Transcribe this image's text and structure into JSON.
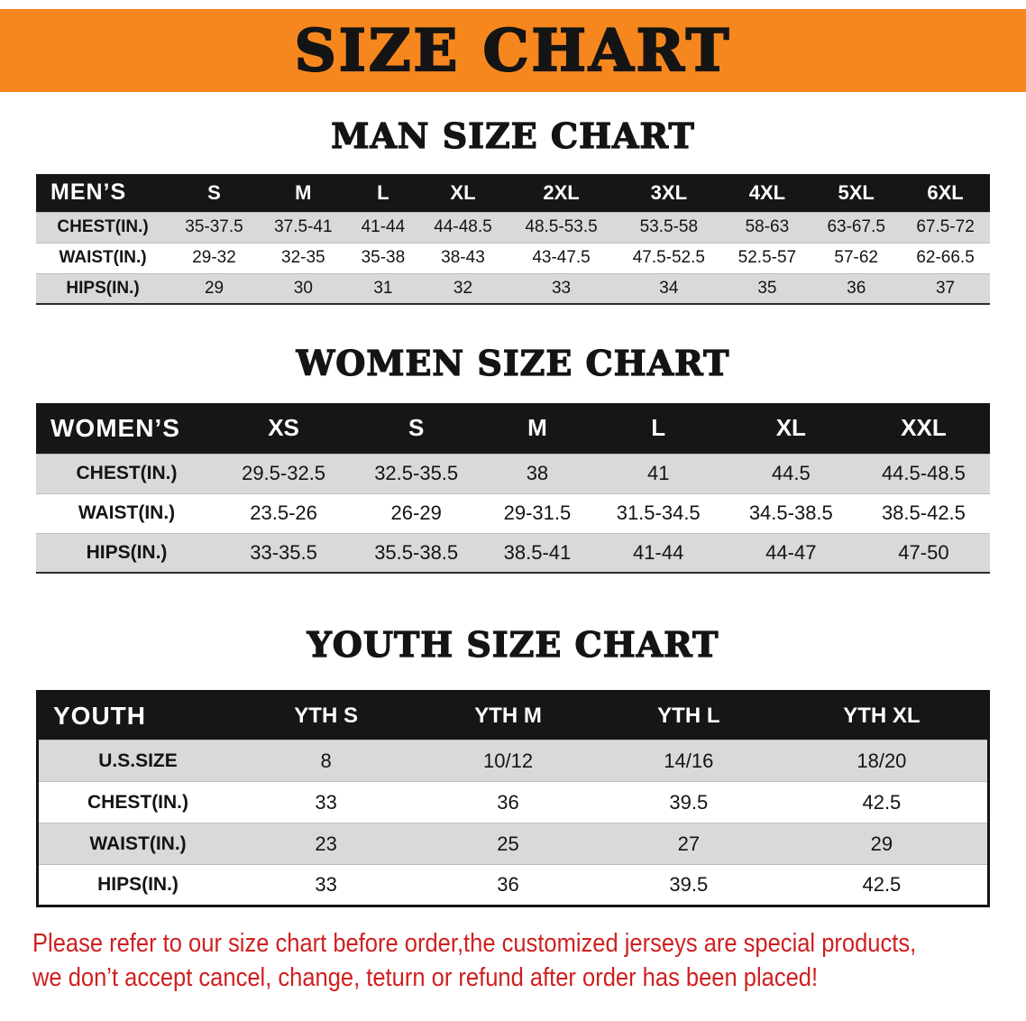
{
  "banner": {
    "title": "SIZE CHART",
    "background_color": "#f6871f",
    "text_color": "#141414"
  },
  "chart_data": [
    {
      "type": "table",
      "title": "MAN SIZE CHART",
      "columns": [
        "MEN’S",
        "S",
        "M",
        "L",
        "XL",
        "2XL",
        "3XL",
        "4XL",
        "5XL",
        "6XL"
      ],
      "rows": [
        [
          "CHEST(IN.)",
          "35-37.5",
          "37.5-41",
          "41-44",
          "44-48.5",
          "48.5-53.5",
          "53.5-58",
          "58-63",
          "63-67.5",
          "67.5-72"
        ],
        [
          "WAIST(IN.)",
          "29-32",
          "32-35",
          "35-38",
          "38-43",
          "43-47.5",
          "47.5-52.5",
          "52.5-57",
          "57-62",
          "62-66.5"
        ],
        [
          "HIPS(IN.)",
          "29",
          "30",
          "31",
          "32",
          "33",
          "34",
          "35",
          "36",
          "37"
        ]
      ]
    },
    {
      "type": "table",
      "title": "WOMEN SIZE CHART",
      "columns": [
        "WOMEN’S",
        "XS",
        "S",
        "M",
        "L",
        "XL",
        "XXL"
      ],
      "rows": [
        [
          "CHEST(IN.)",
          "29.5-32.5",
          "32.5-35.5",
          "38",
          "41",
          "44.5",
          "44.5-48.5"
        ],
        [
          "WAIST(IN.)",
          "23.5-26",
          "26-29",
          "29-31.5",
          "31.5-34.5",
          "34.5-38.5",
          "38.5-42.5"
        ],
        [
          "HIPS(IN.)",
          "33-35.5",
          "35.5-38.5",
          "38.5-41",
          "41-44",
          "44-47",
          "47-50"
        ]
      ]
    },
    {
      "type": "table",
      "title": "YOUTH SIZE CHART",
      "columns": [
        "YOUTH",
        "YTH S",
        "YTH M",
        "YTH L",
        "YTH XL"
      ],
      "rows": [
        [
          "U.S.SIZE",
          "8",
          "10/12",
          "14/16",
          "18/20"
        ],
        [
          "CHEST(IN.)",
          "33",
          "36",
          "39.5",
          "42.5"
        ],
        [
          "WAIST(IN.)",
          "23",
          "25",
          "27",
          "29"
        ],
        [
          "HIPS(IN.)",
          "33",
          "36",
          "39.5",
          "42.5"
        ]
      ]
    }
  ],
  "disclaimer": {
    "line1": "Please refer to our size chart before order,the customized jerseys are special products,",
    "line2": "we don’t accept cancel, change, teturn or refund after order has been placed!",
    "text_color": "#d01f1f"
  }
}
